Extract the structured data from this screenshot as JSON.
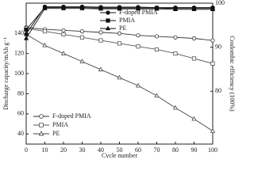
{
  "chart_data": {
    "type": "line",
    "x_label": "Cycle number",
    "y_label": "Discharge capacity/mAh g⁻¹",
    "y2_label": "Coulombic efficiency (100%)",
    "x": [
      0,
      10,
      20,
      30,
      40,
      50,
      60,
      70,
      80,
      90,
      100
    ],
    "xlim": [
      0,
      100
    ],
    "xticks": [
      0,
      10,
      20,
      30,
      40,
      50,
      60,
      70,
      80,
      90,
      100
    ],
    "ylim": [
      30,
      170
    ],
    "yticks": [
      40,
      60,
      80,
      100,
      120,
      140
    ],
    "y2lim": [
      68,
      100
    ],
    "y2ticks": [
      80,
      90,
      100
    ],
    "series": [
      {
        "name": "F-doped PMIA",
        "color": "#333333",
        "marker": "circle",
        "filled": false,
        "values": [
          146,
          144,
          143,
          142,
          141,
          140,
          138,
          137,
          136,
          135,
          133
        ]
      },
      {
        "name": "PMIA",
        "color": "#555555",
        "marker": "square",
        "filled": false,
        "values": [
          145,
          142,
          139,
          136,
          133,
          130,
          127,
          124,
          120,
          115,
          110
        ]
      },
      {
        "name": "PE",
        "color": "#444444",
        "marker": "triangle",
        "filled": false,
        "values": [
          139,
          128,
          120,
          112,
          104,
          96,
          88,
          78,
          66,
          55,
          43
        ]
      },
      {
        "name": "F-doped PMIA",
        "color": "#111111",
        "marker": "circle",
        "filled": true,
        "axis": "y2",
        "values": [
          93,
          99.2,
          99.2,
          99.2,
          99.1,
          99.1,
          99.1,
          99.0,
          99.0,
          99.0,
          99.0
        ]
      },
      {
        "name": "PMIA",
        "color": "#111111",
        "marker": "square",
        "filled": true,
        "axis": "y2",
        "values": [
          94,
          99.0,
          99.0,
          99.0,
          98.9,
          98.9,
          98.9,
          98.9,
          98.8,
          98.8,
          98.8
        ]
      },
      {
        "name": "PE",
        "color": "#111111",
        "marker": "triangle",
        "filled": true,
        "axis": "y2",
        "values": [
          92,
          98.8,
          98.8,
          98.8,
          98.7,
          98.7,
          98.7,
          98.7,
          98.6,
          98.6,
          98.6
        ]
      }
    ]
  }
}
